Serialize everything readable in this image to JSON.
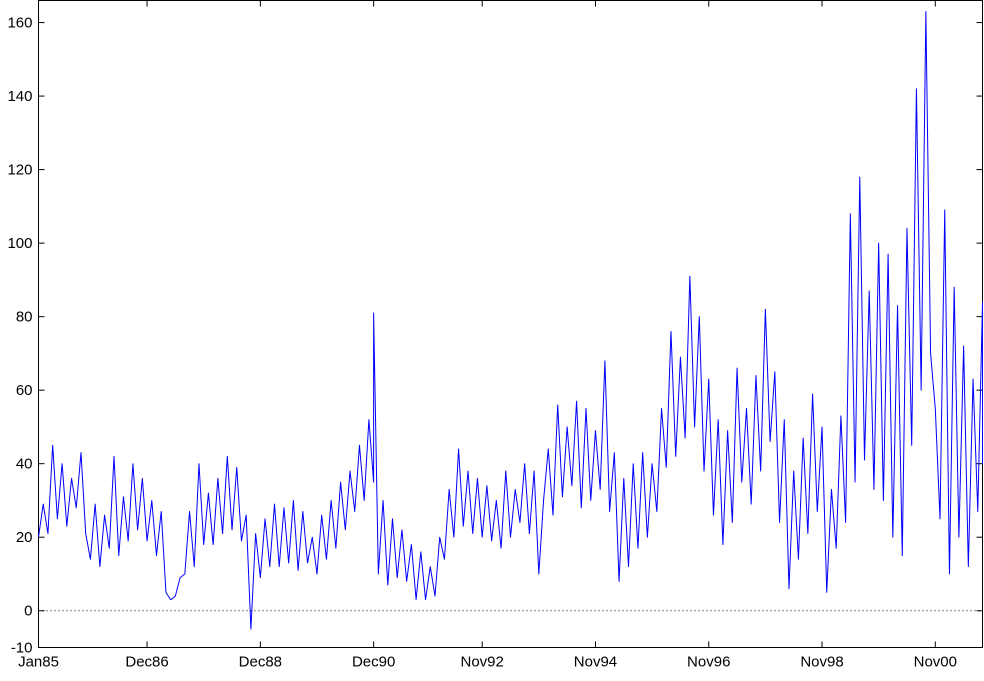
{
  "chart_data": {
    "type": "line",
    "title": "",
    "xlabel": "",
    "ylabel": "",
    "xlim": [
      "1985-01",
      "2001-09"
    ],
    "ylim": [
      -10,
      166
    ],
    "x_ticks": [
      {
        "label": "Jan85",
        "date": "1985-01"
      },
      {
        "label": "Dec86",
        "date": "1986-12"
      },
      {
        "label": "Dec88",
        "date": "1988-12"
      },
      {
        "label": "Dec90",
        "date": "1990-12"
      },
      {
        "label": "Nov92",
        "date": "1992-11"
      },
      {
        "label": "Nov94",
        "date": "1994-11"
      },
      {
        "label": "Nov96",
        "date": "1996-11"
      },
      {
        "label": "Nov98",
        "date": "1998-11"
      },
      {
        "label": "Nov00",
        "date": "2000-11"
      }
    ],
    "y_ticks": [
      -10,
      0,
      20,
      40,
      60,
      80,
      100,
      120,
      140,
      160
    ],
    "zero_line": {
      "value": 0,
      "style": "dotted"
    },
    "grid": false,
    "legend": "none",
    "series": [
      {
        "color": "#0000ff",
        "style": "solid",
        "points": [
          [
            "1985-01",
            20
          ],
          [
            "1985-02",
            29
          ],
          [
            "1985-03",
            21
          ],
          [
            "1985-04",
            45
          ],
          [
            "1985-05",
            25
          ],
          [
            "1985-06",
            40
          ],
          [
            "1985-07",
            23
          ],
          [
            "1985-08",
            36
          ],
          [
            "1985-09",
            28
          ],
          [
            "1985-10",
            43
          ],
          [
            "1985-11",
            21
          ],
          [
            "1985-12",
            14
          ],
          [
            "1986-01",
            29
          ],
          [
            "1986-02",
            12
          ],
          [
            "1986-03",
            26
          ],
          [
            "1986-04",
            17
          ],
          [
            "1986-05",
            42
          ],
          [
            "1986-06",
            15
          ],
          [
            "1986-07",
            31
          ],
          [
            "1986-08",
            19
          ],
          [
            "1986-09",
            40
          ],
          [
            "1986-10",
            22
          ],
          [
            "1986-11",
            36
          ],
          [
            "1986-12",
            19
          ],
          [
            "1987-01",
            30
          ],
          [
            "1987-02",
            15
          ],
          [
            "1987-03",
            27
          ],
          [
            "1987-04",
            5
          ],
          [
            "1987-05",
            3
          ],
          [
            "1987-06",
            4
          ],
          [
            "1987-07",
            9
          ],
          [
            "1987-08",
            10
          ],
          [
            "1987-09",
            27
          ],
          [
            "1987-10",
            12
          ],
          [
            "1987-11",
            40
          ],
          [
            "1987-12",
            18
          ],
          [
            "1988-01",
            32
          ],
          [
            "1988-02",
            18
          ],
          [
            "1988-03",
            36
          ],
          [
            "1988-04",
            21
          ],
          [
            "1988-05",
            42
          ],
          [
            "1988-06",
            22
          ],
          [
            "1988-07",
            39
          ],
          [
            "1988-08",
            19
          ],
          [
            "1988-09",
            26
          ],
          [
            "1988-10",
            -5
          ],
          [
            "1988-11",
            21
          ],
          [
            "1988-12",
            9
          ],
          [
            "1989-01",
            25
          ],
          [
            "1989-02",
            12
          ],
          [
            "1989-03",
            29
          ],
          [
            "1989-04",
            12
          ],
          [
            "1989-05",
            28
          ],
          [
            "1989-06",
            13
          ],
          [
            "1989-07",
            30
          ],
          [
            "1989-08",
            11
          ],
          [
            "1989-09",
            27
          ],
          [
            "1989-10",
            13
          ],
          [
            "1989-11",
            20
          ],
          [
            "1989-12",
            10
          ],
          [
            "1990-01",
            26
          ],
          [
            "1990-02",
            14
          ],
          [
            "1990-03",
            30
          ],
          [
            "1990-04",
            17
          ],
          [
            "1990-05",
            35
          ],
          [
            "1990-06",
            22
          ],
          [
            "1990-07",
            38
          ],
          [
            "1990-08",
            27
          ],
          [
            "1990-09",
            45
          ],
          [
            "1990-10",
            30
          ],
          [
            "1990-11",
            52
          ],
          [
            "1990-12",
            35
          ],
          [
            "1990-12",
            81
          ],
          [
            "1991-01",
            10
          ],
          [
            "1991-02",
            30
          ],
          [
            "1991-03",
            7
          ],
          [
            "1991-04",
            25
          ],
          [
            "1991-05",
            9
          ],
          [
            "1991-06",
            22
          ],
          [
            "1991-07",
            8
          ],
          [
            "1991-08",
            18
          ],
          [
            "1991-09",
            3
          ],
          [
            "1991-10",
            16
          ],
          [
            "1991-11",
            3
          ],
          [
            "1991-12",
            12
          ],
          [
            "1992-01",
            4
          ],
          [
            "1992-02",
            20
          ],
          [
            "1992-03",
            14
          ],
          [
            "1992-04",
            33
          ],
          [
            "1992-05",
            20
          ],
          [
            "1992-06",
            44
          ],
          [
            "1992-07",
            23
          ],
          [
            "1992-08",
            38
          ],
          [
            "1992-09",
            21
          ],
          [
            "1992-10",
            36
          ],
          [
            "1992-11",
            20
          ],
          [
            "1992-12",
            34
          ],
          [
            "1993-01",
            19
          ],
          [
            "1993-02",
            30
          ],
          [
            "1993-03",
            17
          ],
          [
            "1993-04",
            38
          ],
          [
            "1993-05",
            20
          ],
          [
            "1993-06",
            33
          ],
          [
            "1993-07",
            24
          ],
          [
            "1993-08",
            40
          ],
          [
            "1993-09",
            21
          ],
          [
            "1993-10",
            38
          ],
          [
            "1993-11",
            10
          ],
          [
            "1993-12",
            30
          ],
          [
            "1994-01",
            44
          ],
          [
            "1994-02",
            26
          ],
          [
            "1994-03",
            56
          ],
          [
            "1994-04",
            31
          ],
          [
            "1994-05",
            50
          ],
          [
            "1994-06",
            34
          ],
          [
            "1994-07",
            57
          ],
          [
            "1994-08",
            28
          ],
          [
            "1994-09",
            55
          ],
          [
            "1994-10",
            30
          ],
          [
            "1994-11",
            49
          ],
          [
            "1994-12",
            33
          ],
          [
            "1995-01",
            68
          ],
          [
            "1995-02",
            27
          ],
          [
            "1995-03",
            43
          ],
          [
            "1995-04",
            8
          ],
          [
            "1995-05",
            36
          ],
          [
            "1995-06",
            12
          ],
          [
            "1995-07",
            40
          ],
          [
            "1995-08",
            17
          ],
          [
            "1995-09",
            43
          ],
          [
            "1995-10",
            20
          ],
          [
            "1995-11",
            40
          ],
          [
            "1995-12",
            27
          ],
          [
            "1996-01",
            55
          ],
          [
            "1996-02",
            39
          ],
          [
            "1996-03",
            76
          ],
          [
            "1996-04",
            42
          ],
          [
            "1996-05",
            69
          ],
          [
            "1996-06",
            47
          ],
          [
            "1996-07",
            91
          ],
          [
            "1996-08",
            50
          ],
          [
            "1996-09",
            80
          ],
          [
            "1996-10",
            38
          ],
          [
            "1996-11",
            63
          ],
          [
            "1996-12",
            26
          ],
          [
            "1997-01",
            52
          ],
          [
            "1997-02",
            18
          ],
          [
            "1997-03",
            49
          ],
          [
            "1997-04",
            24
          ],
          [
            "1997-05",
            66
          ],
          [
            "1997-06",
            35
          ],
          [
            "1997-07",
            55
          ],
          [
            "1997-08",
            29
          ],
          [
            "1997-09",
            64
          ],
          [
            "1997-10",
            38
          ],
          [
            "1997-11",
            82
          ],
          [
            "1997-12",
            46
          ],
          [
            "1998-01",
            65
          ],
          [
            "1998-02",
            24
          ],
          [
            "1998-03",
            52
          ],
          [
            "1998-04",
            6
          ],
          [
            "1998-05",
            38
          ],
          [
            "1998-06",
            14
          ],
          [
            "1998-07",
            47
          ],
          [
            "1998-08",
            21
          ],
          [
            "1998-09",
            59
          ],
          [
            "1998-10",
            27
          ],
          [
            "1998-11",
            50
          ],
          [
            "1998-12",
            5
          ],
          [
            "1999-01",
            33
          ],
          [
            "1999-02",
            17
          ],
          [
            "1999-03",
            53
          ],
          [
            "1999-04",
            24
          ],
          [
            "1999-05",
            108
          ],
          [
            "1999-06",
            35
          ],
          [
            "1999-07",
            118
          ],
          [
            "1999-08",
            41
          ],
          [
            "1999-09",
            87
          ],
          [
            "1999-10",
            33
          ],
          [
            "1999-11",
            100
          ],
          [
            "1999-12",
            30
          ],
          [
            "2000-01",
            97
          ],
          [
            "2000-02",
            20
          ],
          [
            "2000-03",
            83
          ],
          [
            "2000-04",
            15
          ],
          [
            "2000-05",
            104
          ],
          [
            "2000-06",
            45
          ],
          [
            "2000-07",
            142
          ],
          [
            "2000-08",
            60
          ],
          [
            "2000-09",
            163
          ],
          [
            "2000-10",
            70
          ],
          [
            "2000-11",
            55
          ],
          [
            "2000-12",
            25
          ],
          [
            "2001-01",
            109
          ],
          [
            "2001-02",
            10
          ],
          [
            "2001-03",
            88
          ],
          [
            "2001-04",
            20
          ],
          [
            "2001-05",
            72
          ],
          [
            "2001-06",
            12
          ],
          [
            "2001-07",
            63
          ],
          [
            "2001-08",
            27
          ],
          [
            "2001-09",
            84
          ],
          [
            "2001-09",
            40
          ]
        ]
      }
    ]
  }
}
